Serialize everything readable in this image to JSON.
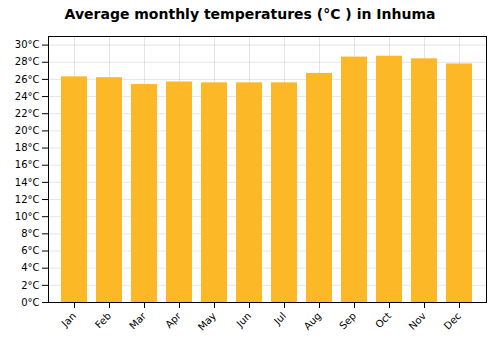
{
  "chart_data": {
    "type": "bar",
    "title": "Average monthly temperatures (°C ) in Inhuma",
    "categories": [
      "Jan",
      "Feb",
      "Mar",
      "Apr",
      "May",
      "Jun",
      "Jul",
      "Aug",
      "Sep",
      "Oct",
      "Nov",
      "Dec"
    ],
    "values": [
      26.3,
      26.2,
      25.4,
      25.7,
      25.6,
      25.6,
      25.6,
      26.7,
      28.6,
      28.7,
      28.4,
      27.8
    ],
    "color": "#FDB827",
    "ylim": [
      0,
      31
    ],
    "yticks": [
      {
        "value": 0,
        "label": "0°C"
      },
      {
        "value": 2,
        "label": "2°C"
      },
      {
        "value": 4,
        "label": "4°C"
      },
      {
        "value": 6,
        "label": "6°C"
      },
      {
        "value": 8,
        "label": "8°C"
      },
      {
        "value": 10,
        "label": "10°C"
      },
      {
        "value": 12,
        "label": "12°C"
      },
      {
        "value": 14,
        "label": "14°C"
      },
      {
        "value": 16,
        "label": "16°C"
      },
      {
        "value": 18,
        "label": "18°C"
      },
      {
        "value": 20,
        "label": "20°C"
      },
      {
        "value": 22,
        "label": "22°C"
      },
      {
        "value": 24,
        "label": "24°C"
      },
      {
        "value": 26,
        "label": "26°C"
      },
      {
        "value": 28,
        "label": "28°C"
      },
      {
        "value": 30,
        "label": "30°C"
      }
    ],
    "grid": true
  }
}
